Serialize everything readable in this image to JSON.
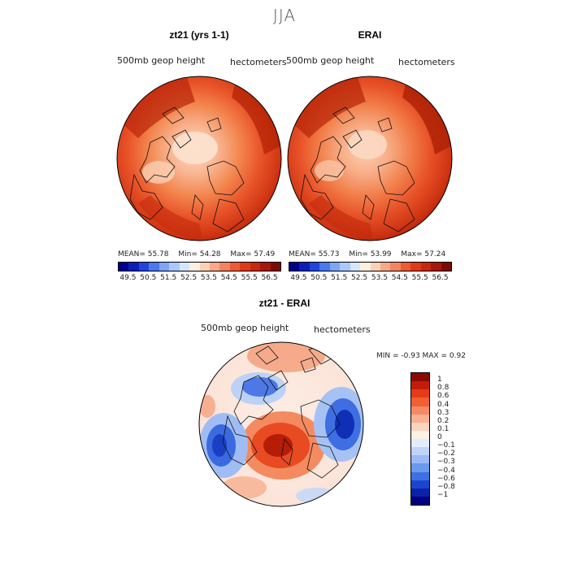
{
  "figure": {
    "title": "JJA"
  },
  "panels": {
    "left": {
      "title": "zt21 (yrs 1-1)",
      "subtitle_left": "500mb  geop  height",
      "subtitle_right": "hectometers",
      "stats": {
        "mean": "MEAN=   55.78",
        "min": "Min=   54.28",
        "max": "Max=   57.49"
      }
    },
    "right": {
      "title": "ERAI",
      "subtitle_left": "500mb  geop  height",
      "subtitle_right": "hectometers",
      "stats": {
        "mean": "MEAN=   55.73",
        "min": "Min=   53.99",
        "max": "Max=   57.24"
      }
    },
    "diff": {
      "title": "zt21 - ERAI",
      "subtitle_left": "500mb  geop  height",
      "subtitle_right": "hectometers",
      "minmax": "MIN =    -0.93  MAX =     0.92"
    }
  },
  "colorbar_abs": {
    "tick_labels": [
      "49.5",
      "50.5",
      "51.5",
      "52.5",
      "53.5",
      "54.5",
      "55.5",
      "56.5"
    ],
    "colors": [
      "#000090",
      "#0a20b8",
      "#2245dd",
      "#4a78ee",
      "#7ea6f6",
      "#aac8fb",
      "#d4e6fc",
      "#fdf0e0",
      "#fcd1b6",
      "#f7a98a",
      "#f3845f",
      "#ee5a33",
      "#e13a1a",
      "#c62810",
      "#a81808",
      "#7c0a02"
    ]
  },
  "colorbar_diff": {
    "tick_labels": [
      "1",
      "0.8",
      "0.6",
      "0.4",
      "0.3",
      "0.2",
      "0.1",
      "0",
      "−0.1",
      "−0.2",
      "−0.3",
      "−0.4",
      "−0.6",
      "−0.8",
      "−1"
    ],
    "colors": [
      "#8a0a02",
      "#c21d0b",
      "#e43c18",
      "#f06030",
      "#f48a62",
      "#f8b192",
      "#fbd3bf",
      "#fdf0e4",
      "#e3ecfb",
      "#bfd4f8",
      "#99baf4",
      "#6c98ee",
      "#3d70e2",
      "#1a46cf",
      "#0a22a5",
      "#000080"
    ]
  },
  "chart_data": [
    {
      "type": "heatmap",
      "title": "zt21 (yrs 1-1)",
      "variable": "500mb geop height",
      "units": "hectometers",
      "projection": "north polar stereographic",
      "mean": 55.78,
      "min": 54.28,
      "max": 57.49,
      "levels": [
        49.5,
        50.5,
        51.5,
        52.5,
        53.5,
        54.5,
        55.5,
        56.5
      ]
    },
    {
      "type": "heatmap",
      "title": "ERAI",
      "variable": "500mb geop height",
      "units": "hectometers",
      "projection": "north polar stereographic",
      "mean": 55.73,
      "min": 53.99,
      "max": 57.24,
      "levels": [
        49.5,
        50.5,
        51.5,
        52.5,
        53.5,
        54.5,
        55.5,
        56.5
      ]
    },
    {
      "type": "heatmap",
      "title": "zt21 - ERAI",
      "variable": "500mb geop height",
      "units": "hectometers",
      "projection": "north polar stereographic",
      "min": -0.93,
      "max": 0.92,
      "levels": [
        -1,
        -0.8,
        -0.6,
        -0.4,
        -0.3,
        -0.2,
        -0.1,
        0,
        0.1,
        0.2,
        0.3,
        0.4,
        0.6,
        0.8,
        1
      ]
    }
  ]
}
